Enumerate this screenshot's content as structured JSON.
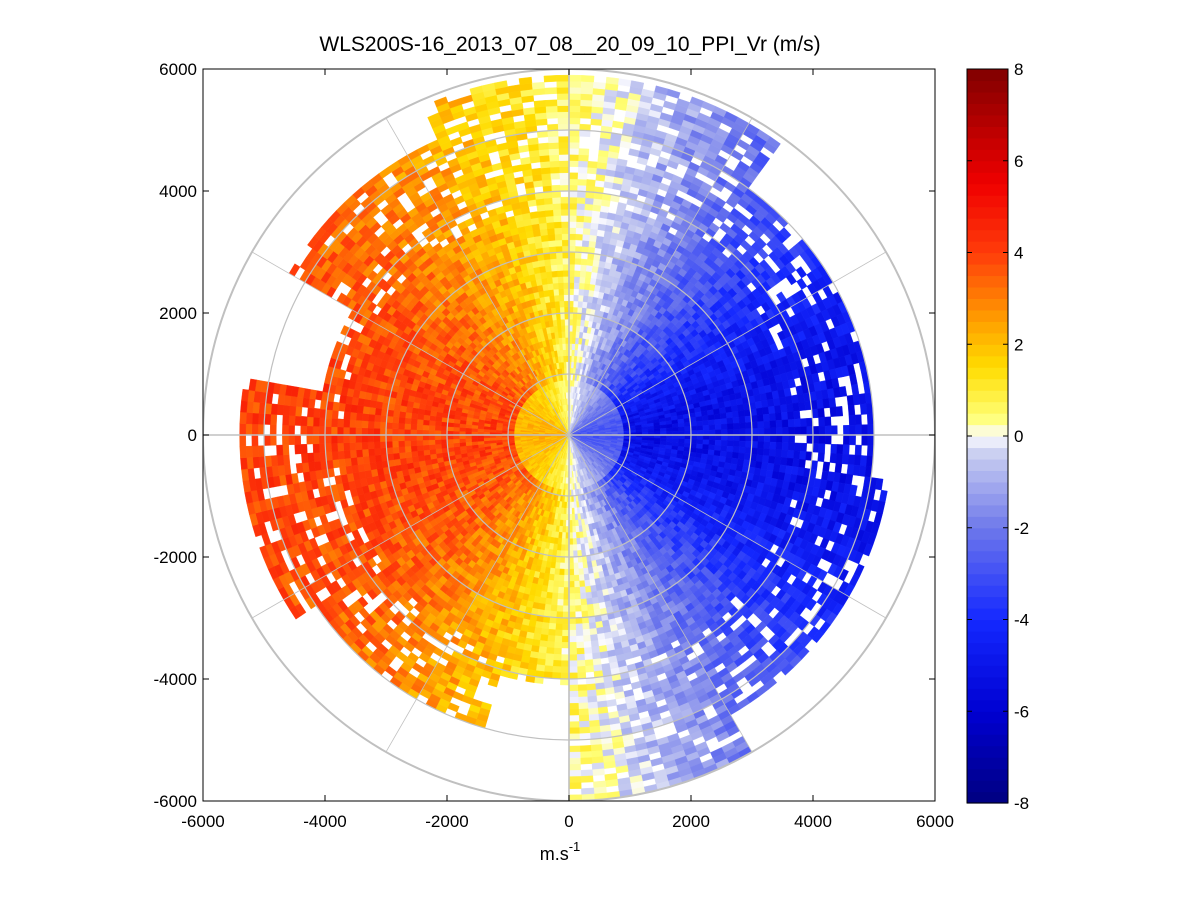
{
  "chart_data": {
    "type": "heatmap",
    "subtype": "polar-ppi",
    "title": "WLS200S-16_2013_07_08__20_09_10_PPI_Vr (m/s)",
    "xlabel_base": "m.s",
    "xlabel_sup": "-1",
    "ylabel": "",
    "xlim": [
      -6000,
      6000
    ],
    "ylim": [
      -6000,
      6000
    ],
    "xticks": [
      -6000,
      -4000,
      -2000,
      0,
      2000,
      4000,
      6000
    ],
    "yticks": [
      -6000,
      -4000,
      -2000,
      0,
      2000,
      4000,
      6000
    ],
    "xtick_labels": [
      "-6000",
      "-4000",
      "-2000",
      "0",
      "2000",
      "4000",
      "6000"
    ],
    "ytick_labels": [
      "-6000",
      "-4000",
      "-2000",
      "0",
      "2000",
      "4000",
      "6000"
    ],
    "range_rings_m": [
      1000,
      2000,
      3000,
      4000,
      5000,
      6000
    ],
    "spoke_angles_deg": [
      0,
      30,
      60,
      90,
      120,
      150,
      180,
      210,
      240,
      270,
      300,
      330
    ],
    "grid": true,
    "colorbar": {
      "min": -8,
      "max": 8,
      "ticks": [
        -8,
        -6,
        -4,
        -2,
        0,
        2,
        4,
        6,
        8
      ],
      "tick_labels": [
        "-8",
        "-6",
        "-4",
        "-2",
        "0",
        "2",
        "4",
        "6",
        "8"
      ],
      "colormap": "blue-white-yellow-red"
    },
    "description_sectors": [
      {
        "az_from": -90,
        "az_to": 0,
        "approx_velocity": [
          0.5,
          4.5
        ],
        "note": "west half positive (yellow to red)"
      },
      {
        "az_from": 0,
        "az_to": 180,
        "approx_velocity": [
          -5.5,
          -0.5
        ],
        "note": "east half negative (light to dark blue)"
      }
    ]
  },
  "colors": {
    "grid": "#c0c0c0",
    "axis": "#000000",
    "background": "#ffffff"
  }
}
